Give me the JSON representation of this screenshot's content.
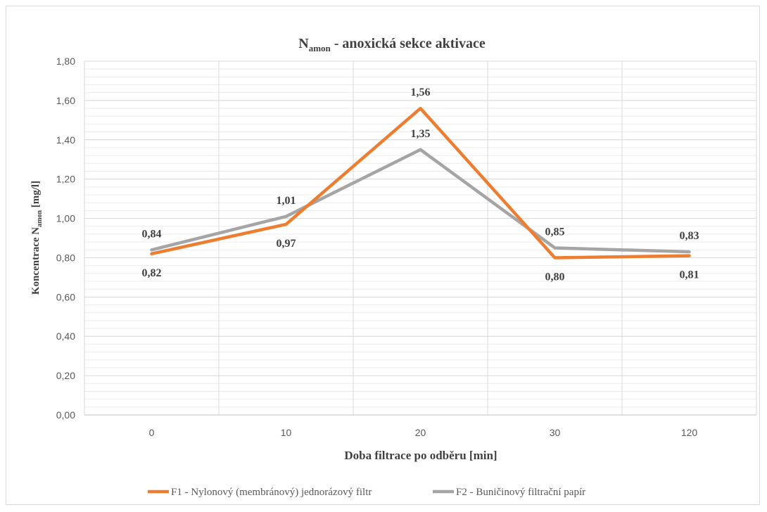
{
  "chart_data": {
    "type": "line",
    "title_main": "N",
    "title_sub": "amon",
    "title_rest": " - anoxická sekce aktivace",
    "xlabel": "Doba filtrace po odběru [min]",
    "ylabel_main": "Koncentrace N",
    "ylabel_sub": "amon",
    "ylabel_rest": " [mg/l]",
    "categories": [
      "0",
      "10",
      "20",
      "30",
      "120"
    ],
    "ylim": [
      0,
      1.8
    ],
    "yticks": [
      "0,00",
      "0,20",
      "0,40",
      "0,60",
      "0,80",
      "1,00",
      "1,20",
      "1,40",
      "1,60",
      "1,80"
    ],
    "grid": true,
    "legend_position": "bottom",
    "series": [
      {
        "name": "F1 - Nylonový (membránový) jednorázový filtr",
        "color": "#ED7D31",
        "values": [
          0.82,
          0.97,
          1.56,
          0.8,
          0.81
        ],
        "labels": [
          "0,82",
          "0,97",
          "1,56",
          "0,80",
          "0,81"
        ]
      },
      {
        "name": "F2 - Buničinový filtrační papír",
        "color": "#A5A5A5",
        "values": [
          0.84,
          1.01,
          1.35,
          0.85,
          0.83
        ],
        "labels": [
          "0,84",
          "1,01",
          "1,35",
          "0,85",
          "0,83"
        ]
      }
    ]
  }
}
